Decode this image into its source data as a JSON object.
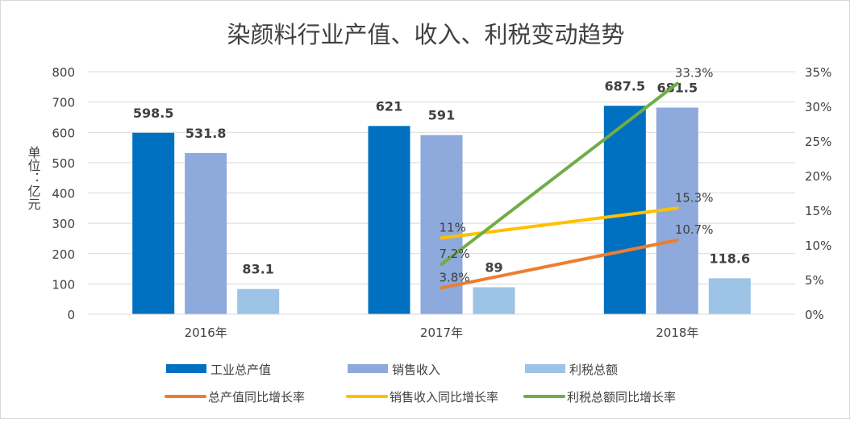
{
  "chart_data": {
    "type": "bar+line",
    "title": "染颜料行业产值、收入、利税变动趋势",
    "ylabel": "单位：亿元",
    "categories": [
      "2016年",
      "2017年",
      "2018年"
    ],
    "ylim": [
      0,
      800
    ],
    "y_ticks": [
      "0",
      "100",
      "200",
      "300",
      "400",
      "500",
      "600",
      "700",
      "800"
    ],
    "y2lim": [
      0,
      35
    ],
    "y2_ticks": [
      "0%",
      "5%",
      "10%",
      "15%",
      "20%",
      "25%",
      "30%",
      "35%"
    ],
    "grid": true,
    "legend_position": "bottom",
    "bar_series": [
      {
        "name": "工业总产值",
        "color": "#0070C0",
        "values": [
          598.5,
          621,
          687.5
        ],
        "labels": [
          "598.5",
          "621",
          "687.5"
        ]
      },
      {
        "name": "销售收入",
        "color": "#8EA9DB",
        "values": [
          531.8,
          591,
          681.5
        ],
        "labels": [
          "531.8",
          "591",
          "681.5"
        ]
      },
      {
        "name": "利税总额",
        "color": "#9DC3E6",
        "values": [
          83.1,
          89,
          118.6
        ],
        "labels": [
          "83.1",
          "89",
          "118.6"
        ]
      }
    ],
    "line_series": [
      {
        "name": "总产值同比增长率",
        "color": "#ED7D31",
        "values": [
          null,
          3.8,
          10.7
        ],
        "labels": [
          "",
          "3.8%",
          "10.7%"
        ]
      },
      {
        "name": "销售收入同比增长率",
        "color": "#FFC000",
        "values": [
          null,
          11,
          15.3
        ],
        "labels": [
          "",
          "11%",
          "15.3%"
        ]
      },
      {
        "name": "利税总额同比增长率",
        "color": "#70AD47",
        "values": [
          null,
          7.2,
          33.3
        ],
        "labels": [
          "",
          "7.2%",
          "33.3%"
        ]
      }
    ]
  }
}
